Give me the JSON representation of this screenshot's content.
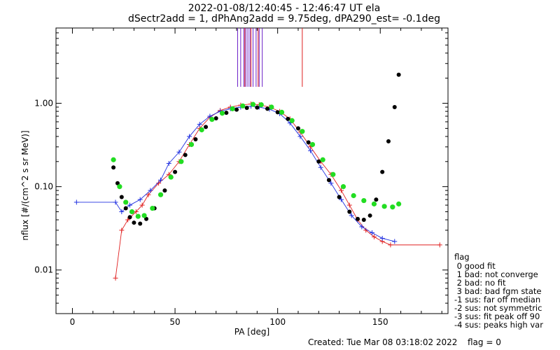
{
  "chart_data": {
    "type": "scatter",
    "title_lines": [
      "2022-01-08/12:40:45 - 12:46:47 UT ela",
      "dSectr2add = 1, dPhAng2add = 9.75deg, dPA290_est=  -0.1deg"
    ],
    "xlabel": "PA [deg]",
    "ylabel": "nflux [#/(cm^2 s sr MeV)]",
    "xlim": [
      -8,
      183
    ],
    "ylim": [
      0.003,
      8.0
    ],
    "yscale": "log",
    "x_ticks": [
      {
        "value": 0,
        "label": "0"
      },
      {
        "value": 50,
        "label": "50"
      },
      {
        "value": 100,
        "label": "100"
      },
      {
        "value": 150,
        "label": "150"
      }
    ],
    "y_ticks": [
      {
        "value": 0.01,
        "label": "0.01"
      },
      {
        "value": 0.1,
        "label": "0.10"
      },
      {
        "value": 1.0,
        "label": "1.00"
      }
    ],
    "vertical_markers": {
      "purple": [
        80.5,
        82,
        83.5,
        84.5,
        85.5,
        86.5,
        88,
        89.5,
        91,
        92.5
      ],
      "red": [
        84,
        87,
        90.5,
        112
      ]
    },
    "series": [
      {
        "color": "#e02020",
        "points": [
          [
            21,
            0.008
          ],
          [
            24,
            0.03
          ],
          [
            27,
            0.04
          ],
          [
            31,
            0.05
          ],
          [
            34,
            0.06
          ],
          [
            37,
            0.08
          ],
          [
            42,
            0.11
          ],
          [
            47,
            0.14
          ],
          [
            52,
            0.2
          ],
          [
            57,
            0.32
          ],
          [
            62,
            0.5
          ],
          [
            67,
            0.68
          ],
          [
            72,
            0.82
          ],
          [
            77,
            0.9
          ],
          [
            82,
            0.95
          ],
          [
            87,
            0.98
          ],
          [
            91,
            0.96
          ],
          [
            96,
            0.9
          ],
          [
            101,
            0.8
          ],
          [
            106,
            0.65
          ],
          [
            111,
            0.45
          ],
          [
            116,
            0.3
          ],
          [
            121,
            0.2
          ],
          [
            126,
            0.14
          ],
          [
            131,
            0.09
          ],
          [
            135,
            0.06
          ],
          [
            139,
            0.04
          ],
          [
            143,
            0.03
          ],
          [
            147,
            0.025
          ],
          [
            151,
            0.022
          ],
          [
            155,
            0.02
          ],
          [
            179,
            0.02
          ]
        ]
      },
      {
        "color": "#2030e0",
        "points": [
          [
            2,
            0.065
          ],
          [
            21,
            0.065
          ],
          [
            24,
            0.05
          ],
          [
            28,
            0.06
          ],
          [
            33,
            0.07
          ],
          [
            38,
            0.09
          ],
          [
            43,
            0.12
          ],
          [
            47,
            0.19
          ],
          [
            52,
            0.26
          ],
          [
            57,
            0.4
          ],
          [
            62,
            0.56
          ],
          [
            67,
            0.7
          ],
          [
            72,
            0.8
          ],
          [
            77,
            0.86
          ],
          [
            82,
            0.9
          ],
          [
            87,
            0.92
          ],
          [
            91,
            0.9
          ],
          [
            96,
            0.85
          ],
          [
            101,
            0.75
          ],
          [
            106,
            0.58
          ],
          [
            111,
            0.4
          ],
          [
            116,
            0.27
          ],
          [
            121,
            0.17
          ],
          [
            126,
            0.11
          ],
          [
            131,
            0.07
          ],
          [
            136,
            0.045
          ],
          [
            141,
            0.033
          ],
          [
            146,
            0.028
          ],
          [
            151,
            0.024
          ],
          [
            157,
            0.022
          ]
        ]
      },
      {
        "color": "#000000",
        "points": [
          [
            20,
            0.17
          ],
          [
            22,
            0.11
          ],
          [
            24,
            0.075
          ],
          [
            26,
            0.055
          ],
          [
            28,
            0.043
          ],
          [
            30,
            0.037
          ],
          [
            33,
            0.036
          ],
          [
            36,
            0.041
          ],
          [
            40,
            0.055
          ],
          [
            45,
            0.09
          ],
          [
            50,
            0.15
          ],
          [
            55,
            0.24
          ],
          [
            60,
            0.37
          ],
          [
            65,
            0.52
          ],
          [
            70,
            0.66
          ],
          [
            75,
            0.77
          ],
          [
            80,
            0.84
          ],
          [
            85,
            0.88
          ],
          [
            90,
            0.89
          ],
          [
            95,
            0.86
          ],
          [
            100,
            0.78
          ],
          [
            105,
            0.65
          ],
          [
            110,
            0.5
          ],
          [
            115,
            0.34
          ],
          [
            120,
            0.2
          ],
          [
            125,
            0.12
          ],
          [
            130,
            0.075
          ],
          [
            135,
            0.05
          ],
          [
            139,
            0.041
          ],
          [
            142,
            0.04
          ],
          [
            145,
            0.045
          ],
          [
            148,
            0.07
          ],
          [
            151,
            0.15
          ],
          [
            154,
            0.35
          ],
          [
            157,
            0.9
          ],
          [
            159,
            2.2
          ]
        ]
      },
      {
        "color": "#22dd22",
        "points": [
          [
            20,
            0.21
          ],
          [
            23,
            0.1
          ],
          [
            26,
            0.065
          ],
          [
            29,
            0.05
          ],
          [
            32,
            0.044
          ],
          [
            35,
            0.045
          ],
          [
            39,
            0.055
          ],
          [
            43,
            0.08
          ],
          [
            48,
            0.13
          ],
          [
            53,
            0.2
          ],
          [
            58,
            0.32
          ],
          [
            63,
            0.48
          ],
          [
            68,
            0.64
          ],
          [
            73,
            0.76
          ],
          [
            78,
            0.86
          ],
          [
            83,
            0.93
          ],
          [
            88,
            0.97
          ],
          [
            92,
            0.96
          ],
          [
            97,
            0.9
          ],
          [
            102,
            0.78
          ],
          [
            107,
            0.62
          ],
          [
            112,
            0.46
          ],
          [
            117,
            0.32
          ],
          [
            122,
            0.21
          ],
          [
            127,
            0.14
          ],
          [
            132,
            0.1
          ],
          [
            137,
            0.078
          ],
          [
            142,
            0.068
          ],
          [
            147,
            0.062
          ],
          [
            152,
            0.058
          ],
          [
            156,
            0.057
          ],
          [
            159,
            0.062
          ]
        ]
      }
    ],
    "legend_placement": "right, below plot",
    "legend": {
      "title": "flag",
      "entries": [
        " 0 good fit",
        " 1 bad: not converge",
        " 2 bad: no fit",
        " 3 bad: bad fgm state",
        "-1 sus: far off median",
        "-2 sus: not symmetric",
        "-3 sus: fit peak off 90",
        "-4 sus: peaks high var"
      ]
    },
    "footer": {
      "created": "Created: Tue Mar 08 03:18:02 2022",
      "flag": "flag = 0"
    }
  }
}
